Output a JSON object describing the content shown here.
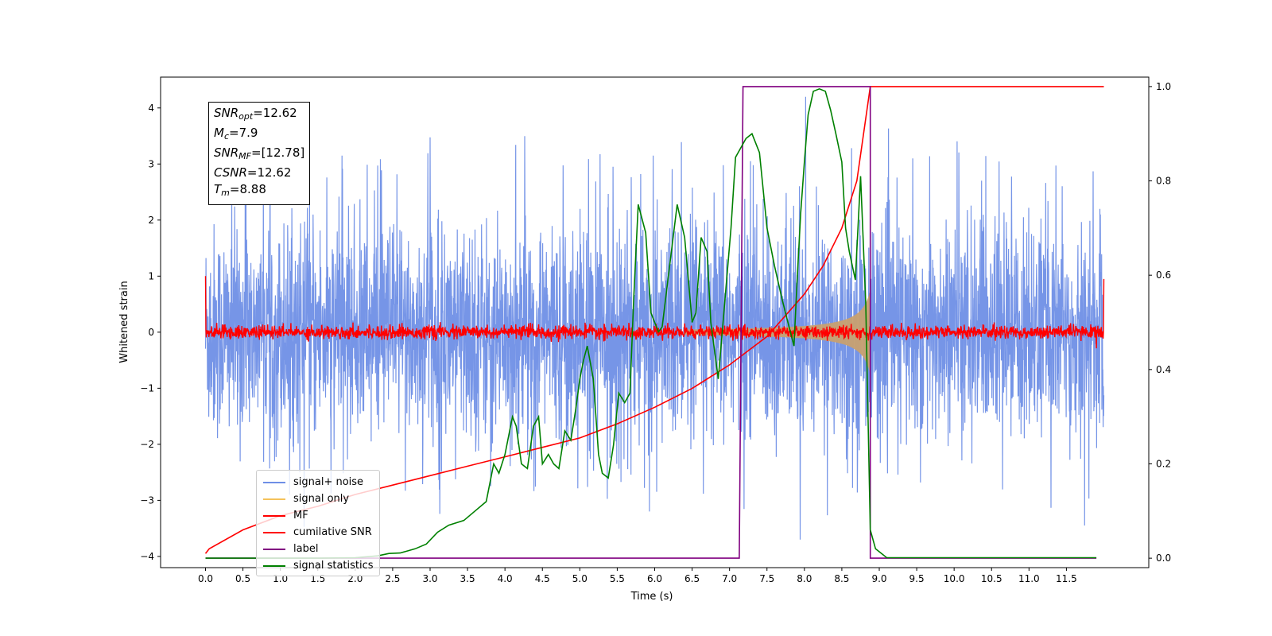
{
  "chart_data": {
    "type": "line",
    "title": "",
    "xlabel": "Time (s)",
    "ylabel": "Whitened strain",
    "y2label": "",
    "xlim": [
      -0.6,
      12.6
    ],
    "ylim": [
      -4.2,
      4.55
    ],
    "y2lim": [
      -0.02,
      1.02
    ],
    "xticks": [
      "0.0",
      "0.5",
      "1.0",
      "1.5",
      "2.0",
      "2.5",
      "3.0",
      "3.5",
      "4.0",
      "4.5",
      "5.0",
      "5.5",
      "6.0",
      "6.5",
      "7.0",
      "7.5",
      "8.0",
      "8.5",
      "9.0",
      "9.5",
      "10.0",
      "10.5",
      "11.0",
      "11.5"
    ],
    "yticks": [
      "4",
      "3",
      "2",
      "1",
      "0",
      "−1",
      "−2",
      "−3",
      "−4"
    ],
    "y2ticks": [
      "1.0",
      "0.8",
      "0.6",
      "0.4",
      "0.2",
      "0.0"
    ],
    "annotation": {
      "snr_opt_label": "SNR",
      "snr_opt_sub": "opt",
      "snr_opt_value": "=12.62",
      "mc_label": "M",
      "mc_sub": "c",
      "mc_value": "=7.9",
      "snr_mf_label": "SNR",
      "snr_mf_sub": "MF",
      "snr_mf_value": "=[12.78]",
      "csnr_label": "CSNR",
      "csnr_value": "=12.62",
      "tm_label": "T",
      "tm_sub": "m",
      "tm_value": "=8.88"
    },
    "legend": {
      "placement": "lower-left",
      "items": [
        {
          "label": "signal+ noise",
          "color": "#6f8fe6"
        },
        {
          "label": "signal only",
          "color": "#f5c25a"
        },
        {
          "label": "MF",
          "color": "#ff0000"
        },
        {
          "label": "cumilative SNR",
          "color": "#ff0000"
        },
        {
          "label": "label",
          "color": "#800080"
        },
        {
          "label": "signal statistics",
          "color": "#008000"
        }
      ]
    },
    "series": [
      {
        "name": "signal+ noise",
        "axis": "left",
        "color": "#6f8fe6",
        "kind": "noise",
        "t_start": 0.0,
        "t_end": 12.0,
        "sigma": 1.0,
        "visual_extremes": [
          4.2,
          -3.7
        ]
      },
      {
        "name": "signal only",
        "axis": "left",
        "color": "#c8a070",
        "kind": "chirp_envelope",
        "t_start": 6.4,
        "t_merger": 8.88,
        "amplitude_at_merger": 0.75
      },
      {
        "name": "MF",
        "axis": "left",
        "color": "#ff0000",
        "kind": "noise",
        "t_start": 0.0,
        "t_end": 12.0,
        "sigma": 0.06,
        "end_values": [
          1.0,
          0.95
        ]
      },
      {
        "name": "cumilative SNR",
        "axis": "right",
        "color": "#ff0000",
        "x": [
          0.0,
          0.05,
          0.5,
          1.0,
          1.5,
          2.0,
          2.5,
          3.0,
          3.5,
          4.0,
          4.5,
          5.0,
          5.5,
          6.0,
          6.5,
          7.0,
          7.5,
          8.0,
          8.25,
          8.5,
          8.7,
          8.88,
          9.0,
          11.5,
          12.0
        ],
        "y": [
          0.01,
          0.02,
          0.06,
          0.09,
          0.11,
          0.135,
          0.155,
          0.175,
          0.195,
          0.215,
          0.235,
          0.255,
          0.285,
          0.32,
          0.36,
          0.41,
          0.47,
          0.56,
          0.62,
          0.7,
          0.8,
          1.0,
          1.0,
          1.0,
          1.0
        ]
      },
      {
        "name": "label",
        "axis": "right",
        "color": "#800080",
        "x": [
          0.0,
          7.13,
          7.18,
          8.88,
          8.88,
          9.0,
          11.9
        ],
        "y": [
          0.0,
          0.0,
          1.0,
          1.0,
          0.0,
          0.0,
          0.0
        ]
      },
      {
        "name": "signal statistics",
        "axis": "right",
        "color": "#008000",
        "x": [
          0.0,
          1.5,
          2.0,
          2.3,
          2.45,
          2.6,
          2.8,
          2.95,
          3.1,
          3.25,
          3.45,
          3.6,
          3.75,
          3.85,
          3.92,
          4.0,
          4.1,
          4.15,
          4.22,
          4.3,
          4.38,
          4.45,
          4.5,
          4.58,
          4.65,
          4.72,
          4.8,
          4.88,
          4.95,
          5.0,
          5.05,
          5.1,
          5.18,
          5.25,
          5.3,
          5.38,
          5.45,
          5.52,
          5.6,
          5.67,
          5.72,
          5.78,
          5.83,
          5.88,
          5.95,
          6.05,
          6.1,
          6.2,
          6.3,
          6.4,
          6.5,
          6.55,
          6.62,
          6.7,
          6.75,
          6.85,
          6.95,
          7.02,
          7.08,
          7.15,
          7.22,
          7.3,
          7.4,
          7.5,
          7.6,
          7.7,
          7.78,
          7.86,
          7.9,
          7.95,
          8.0,
          8.05,
          8.12,
          8.2,
          8.28,
          8.35,
          8.42,
          8.5,
          8.55,
          8.6,
          8.68,
          8.75,
          8.82,
          8.88,
          8.95,
          9.1,
          11.9
        ],
        "y": [
          0.0,
          0.0,
          0.001,
          0.005,
          0.01,
          0.011,
          0.02,
          0.03,
          0.055,
          0.07,
          0.08,
          0.1,
          0.12,
          0.2,
          0.18,
          0.22,
          0.3,
          0.28,
          0.2,
          0.19,
          0.28,
          0.3,
          0.2,
          0.22,
          0.2,
          0.19,
          0.27,
          0.25,
          0.32,
          0.38,
          0.42,
          0.45,
          0.38,
          0.22,
          0.18,
          0.17,
          0.24,
          0.35,
          0.33,
          0.35,
          0.55,
          0.75,
          0.72,
          0.69,
          0.52,
          0.48,
          0.49,
          0.62,
          0.75,
          0.68,
          0.5,
          0.52,
          0.68,
          0.65,
          0.5,
          0.38,
          0.57,
          0.7,
          0.85,
          0.87,
          0.89,
          0.9,
          0.86,
          0.7,
          0.62,
          0.55,
          0.5,
          0.45,
          0.58,
          0.73,
          0.84,
          0.94,
          0.99,
          0.995,
          0.99,
          0.95,
          0.9,
          0.84,
          0.7,
          0.65,
          0.59,
          0.81,
          0.54,
          0.06,
          0.02,
          0.001,
          0.001
        ]
      }
    ]
  }
}
